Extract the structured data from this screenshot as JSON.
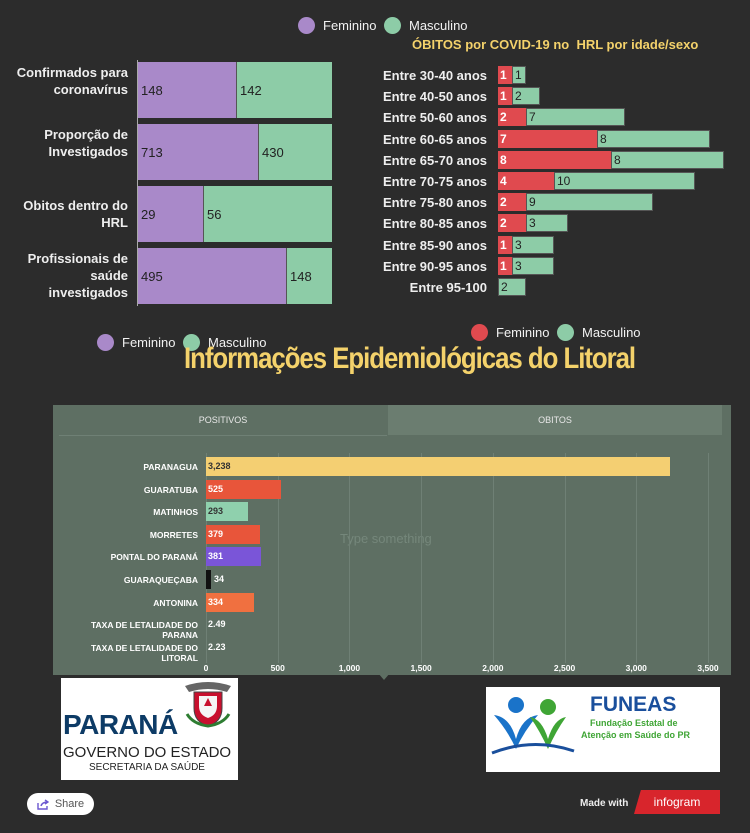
{
  "legend_top": {
    "feminino": "Feminino",
    "masculino": "Masculino"
  },
  "right_chart_title": "ÓBITOS por COVID-19 no  HRL por idade/sexo",
  "legend_left_bottom": {
    "feminino": "Feminino",
    "masculino": "Masculino"
  },
  "legend_right_bottom": {
    "feminino": "Feminino",
    "masculino": "Masculino"
  },
  "main_title": "Informações Epidemiológicas do Litoral",
  "tabs": {
    "positivos": "POSITIVOS",
    "obitos": "OBITOS"
  },
  "placeholder": "Type something",
  "logos": {
    "parana_word": "PARANÁ",
    "parana_line1": "GOVERNO DO ESTADO",
    "parana_line2": "SECRETARIA DA SAÚDE",
    "funeas_word": "FUNEAS",
    "funeas_line1": "Fundação Estatal de",
    "funeas_line2": "Atenção em Saúde do PR"
  },
  "footer": {
    "share": "Share",
    "made_with": "Made with",
    "brand": "infogram"
  },
  "colors": {
    "feminino": "#a989c9",
    "masculino": "#8dcca7",
    "fem_red": "#e04a4f",
    "title": "#f4d26b",
    "panel": "#5e6f63"
  },
  "chart_data": [
    {
      "type": "bar",
      "stacked": true,
      "orientation": "horizontal",
      "categories": [
        "Confirmados para coronavírus",
        "Proporção de Investigados",
        "Obitos dentro do HRL",
        "Profissionais de saúde investigados"
      ],
      "series": [
        {
          "name": "Feminino",
          "values": [
            148,
            713,
            29,
            495
          ]
        },
        {
          "name": "Masculino",
          "values": [
            142,
            430,
            56,
            148
          ]
        }
      ],
      "normalized": true
    },
    {
      "type": "bar",
      "stacked": true,
      "orientation": "horizontal",
      "title": "ÓBITOS por COVID-19 no  HRL por idade/sexo",
      "categories": [
        "Entre 30-40 anos",
        "Entre 40-50 anos",
        "Entre 50-60 anos",
        "Entre 60-65 anos",
        "Entre 65-70 anos",
        "Entre 70-75 anos",
        "Entre 75-80 anos",
        "Entre 80-85 anos",
        "Entre 85-90 anos",
        "Entre 90-95 anos",
        "Entre 95-100"
      ],
      "series": [
        {
          "name": "Feminino",
          "values": [
            1,
            1,
            2,
            7,
            8,
            4,
            2,
            2,
            1,
            1,
            null
          ]
        },
        {
          "name": "Masculino",
          "values": [
            1,
            2,
            7,
            8,
            8,
            10,
            9,
            3,
            3,
            3,
            2
          ]
        }
      ]
    },
    {
      "type": "bar",
      "orientation": "horizontal",
      "categories": [
        "PARANAGUA",
        "GUARATUBA",
        "MATINHOS",
        "MORRETES",
        "PONTAL DO PARANÁ",
        "GUARAQUEÇABA",
        "ANTONINA",
        "TAXA DE LETALIDADE DO PARANA",
        "TAXA DE LETALIDADE DO LITORAL"
      ],
      "values": [
        3238,
        525,
        293,
        379,
        381,
        34,
        334,
        2.49,
        2.23
      ],
      "labels": [
        "3,238",
        "525",
        "293",
        "379",
        "381",
        "34",
        "334",
        "2.49",
        "2.23"
      ],
      "bar_colors": [
        "#f4cf72",
        "#e8553a",
        "#8fd0ad",
        "#e8553a",
        "#7a55d8",
        "#111111",
        "#f07040",
        null,
        null
      ],
      "xticks": [
        "0",
        "500",
        "1,000",
        "1,500",
        "2,000",
        "2,500",
        "3,000",
        "3,500"
      ],
      "xlim": [
        0,
        3500
      ]
    }
  ]
}
